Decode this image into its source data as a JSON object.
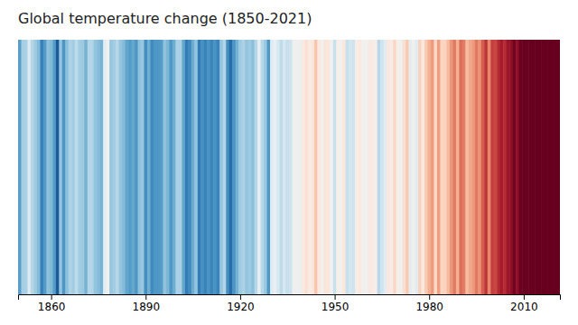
{
  "chart_data": {
    "type": "heatmap",
    "title": "Global temperature change (1850-2021)",
    "x": [
      1850,
      1851,
      1852,
      1853,
      1854,
      1855,
      1856,
      1857,
      1858,
      1859,
      1860,
      1861,
      1862,
      1863,
      1864,
      1865,
      1866,
      1867,
      1868,
      1869,
      1870,
      1871,
      1872,
      1873,
      1874,
      1875,
      1876,
      1877,
      1878,
      1879,
      1880,
      1881,
      1882,
      1883,
      1884,
      1885,
      1886,
      1887,
      1888,
      1889,
      1890,
      1891,
      1892,
      1893,
      1894,
      1895,
      1896,
      1897,
      1898,
      1899,
      1900,
      1901,
      1902,
      1903,
      1904,
      1905,
      1906,
      1907,
      1908,
      1909,
      1910,
      1911,
      1912,
      1913,
      1914,
      1915,
      1916,
      1917,
      1918,
      1919,
      1920,
      1921,
      1922,
      1923,
      1924,
      1925,
      1926,
      1927,
      1928,
      1929,
      1930,
      1931,
      1932,
      1933,
      1934,
      1935,
      1936,
      1937,
      1938,
      1939,
      1940,
      1941,
      1942,
      1943,
      1944,
      1945,
      1946,
      1947,
      1948,
      1949,
      1950,
      1951,
      1952,
      1953,
      1954,
      1955,
      1956,
      1957,
      1958,
      1959,
      1960,
      1961,
      1962,
      1963,
      1964,
      1965,
      1966,
      1967,
      1968,
      1969,
      1970,
      1971,
      1972,
      1973,
      1974,
      1975,
      1976,
      1977,
      1978,
      1979,
      1980,
      1981,
      1982,
      1983,
      1984,
      1985,
      1986,
      1987,
      1988,
      1989,
      1990,
      1991,
      1992,
      1993,
      1994,
      1995,
      1996,
      1997,
      1998,
      1999,
      2000,
      2001,
      2002,
      2003,
      2004,
      2005,
      2006,
      2007,
      2008,
      2009,
      2010,
      2011,
      2012,
      2013,
      2014,
      2015,
      2016,
      2017,
      2018,
      2019,
      2020,
      2021
    ],
    "values": [
      -0.414,
      -0.249,
      -0.244,
      -0.106,
      -0.218,
      -0.267,
      -0.326,
      -0.509,
      -0.432,
      -0.303,
      -0.327,
      -0.424,
      -0.629,
      -0.292,
      -0.446,
      -0.307,
      -0.237,
      -0.256,
      -0.191,
      -0.262,
      -0.269,
      -0.354,
      -0.216,
      -0.225,
      -0.29,
      -0.318,
      -0.349,
      -0.077,
      -0.013,
      -0.284,
      -0.259,
      -0.212,
      -0.291,
      -0.325,
      -0.395,
      -0.425,
      -0.388,
      -0.44,
      -0.305,
      -0.282,
      -0.467,
      -0.365,
      -0.482,
      -0.44,
      -0.439,
      -0.424,
      -0.296,
      -0.339,
      -0.437,
      -0.371,
      -0.239,
      -0.244,
      -0.393,
      -0.527,
      -0.477,
      -0.371,
      -0.293,
      -0.527,
      -0.459,
      -0.503,
      -0.452,
      -0.497,
      -0.453,
      -0.5,
      -0.286,
      -0.22,
      -0.465,
      -0.574,
      -0.449,
      -0.356,
      -0.265,
      -0.234,
      -0.29,
      -0.268,
      -0.31,
      -0.214,
      -0.059,
      -0.213,
      -0.277,
      -0.435,
      -0.094,
      -0.048,
      -0.118,
      -0.192,
      -0.124,
      -0.172,
      -0.146,
      -0.024,
      -0.004,
      -0.044,
      0.063,
      0.111,
      0.052,
      0.077,
      0.204,
      0.068,
      -0.01,
      0.089,
      0.079,
      -0.025,
      -0.161,
      0.026,
      0.004,
      0.085,
      -0.168,
      -0.127,
      -0.141,
      0.038,
      0.067,
      0.004,
      -0.019,
      0.06,
      0.052,
      0.034,
      -0.206,
      -0.143,
      -0.082,
      0.069,
      0.046,
      0.144,
      0.028,
      -0.024,
      0.114,
      0.188,
      -0.067,
      -0.012,
      -0.086,
      0.166,
      0.069,
      0.191,
      0.267,
      0.321,
      0.14,
      0.311,
      0.154,
      0.159,
      0.239,
      0.327,
      0.394,
      0.266,
      0.417,
      0.39,
      0.236,
      0.288,
      0.319,
      0.396,
      0.338,
      0.455,
      0.546,
      0.361,
      0.52,
      0.502,
      0.573,
      0.616,
      0.571,
      0.638,
      0.665,
      0.726,
      0.666,
      0.741,
      0.852,
      0.742,
      0.82,
      0.889,
      0.972,
      1.101,
      1.245,
      1.024,
      0.985,
      1.071,
      1.202,
      1.124
    ],
    "xlim": [
      1849.5,
      2021.5
    ],
    "xticks": [
      1860,
      1890,
      1920,
      1950,
      1980,
      2010
    ],
    "color_range": [
      -0.75,
      0.75
    ],
    "tick_labels": "x"
  }
}
